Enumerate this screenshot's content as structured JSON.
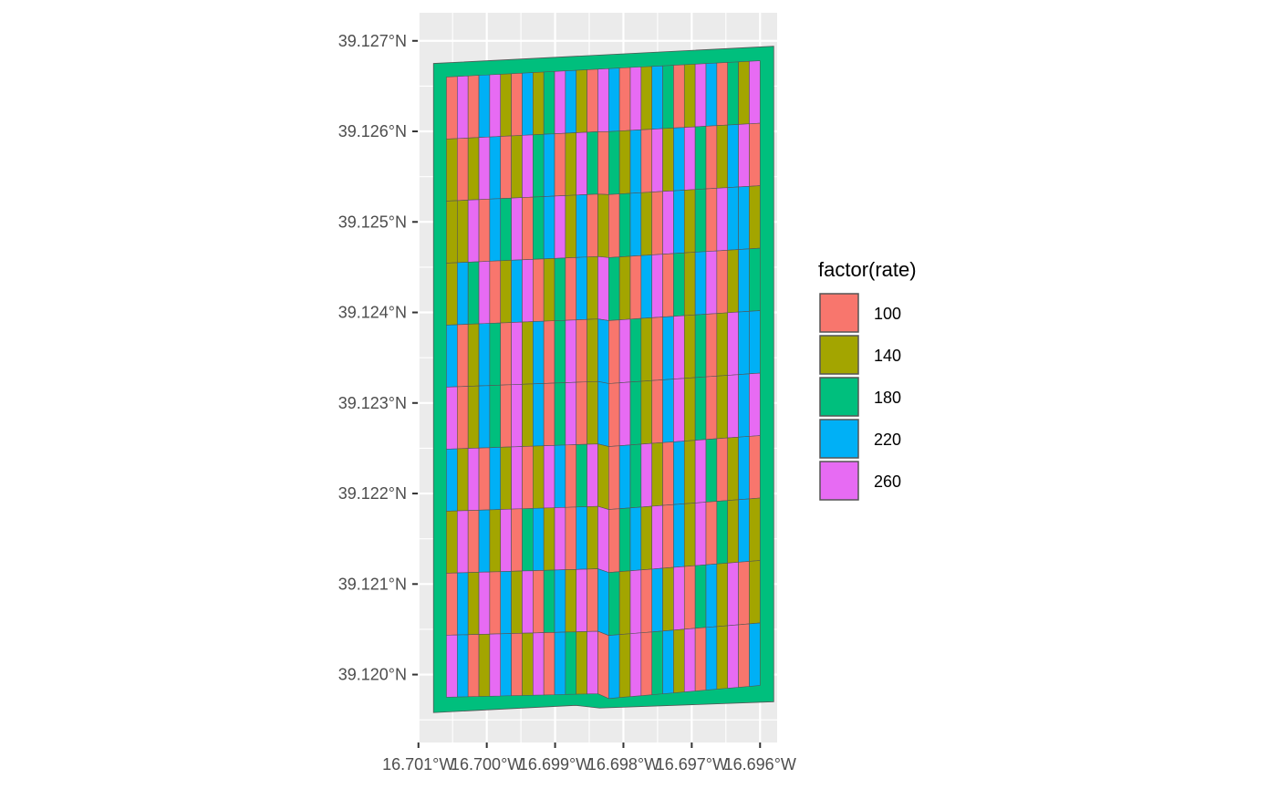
{
  "chart_data": {
    "type": "map",
    "x_axis": {
      "ticks": [
        -16.701,
        -16.7,
        -16.699,
        -16.698,
        -16.697,
        -16.696
      ],
      "tick_labels": [
        "16.701°W",
        "16.700°W",
        "16.699°W",
        "16.698°W",
        "16.697°W",
        "16.696°W"
      ],
      "range": [
        -16.70101,
        -16.69575
      ]
    },
    "y_axis": {
      "ticks": [
        39.12,
        39.121,
        39.122,
        39.123,
        39.124,
        39.125,
        39.126,
        39.127
      ],
      "tick_labels": [
        "39.120°N",
        "39.121°N",
        "39.122°N",
        "39.123°N",
        "39.124°N",
        "39.125°N",
        "39.126°N",
        "39.127°N"
      ],
      "range": [
        39.11925,
        39.12731
      ]
    },
    "panel_background": "#EBEBEB",
    "grid": true,
    "field_boundary": {
      "fill": "#00BF7D",
      "vertices": [
        [
          -16.70078,
          39.12675
        ],
        [
          -16.6958,
          39.12694
        ],
        [
          -16.6958,
          39.1197
        ],
        [
          -16.69835,
          39.11963
        ],
        [
          -16.6987,
          39.11966
        ],
        [
          -16.70078,
          39.11958
        ]
      ]
    },
    "trial_grid": {
      "columns": 29,
      "rows": 10,
      "x_start": -16.70059,
      "x_end": -16.696,
      "top_left_lat": 39.1266,
      "top_right_lat": 39.12678,
      "bottom_left_lat": 39.11975,
      "bottom_mid_lat": 39.11979,
      "bottom_right_lat": 39.11988,
      "notch_lon": -16.69831,
      "notch_depth": 6e-05
    },
    "rates": [
      [
        100,
        260,
        100,
        220,
        260,
        140,
        100,
        220,
        140,
        180,
        260,
        220,
        140,
        100,
        260,
        220,
        100,
        260,
        140,
        220,
        180,
        100,
        140,
        260,
        220,
        100,
        180,
        140,
        260
      ],
      [
        140,
        100,
        140,
        260,
        220,
        100,
        140,
        260,
        180,
        220,
        100,
        140,
        260,
        180,
        100,
        180,
        140,
        220,
        100,
        260,
        140,
        220,
        260,
        180,
        100,
        140,
        220,
        260,
        100
      ],
      [
        140,
        140,
        260,
        100,
        220,
        180,
        260,
        100,
        180,
        220,
        260,
        140,
        220,
        100,
        140,
        100,
        180,
        220,
        140,
        100,
        260,
        220,
        140,
        180,
        100,
        260,
        220,
        220,
        140
      ],
      [
        140,
        220,
        180,
        260,
        100,
        140,
        220,
        260,
        100,
        140,
        180,
        100,
        220,
        140,
        260,
        180,
        140,
        100,
        220,
        260,
        100,
        180,
        140,
        220,
        260,
        100,
        140,
        220,
        180
      ],
      [
        220,
        100,
        140,
        220,
        180,
        100,
        260,
        140,
        220,
        100,
        180,
        260,
        100,
        140,
        220,
        100,
        260,
        180,
        140,
        100,
        220,
        260,
        140,
        180,
        100,
        140,
        260,
        220,
        220
      ],
      [
        260,
        100,
        140,
        220,
        180,
        100,
        260,
        140,
        220,
        100,
        180,
        260,
        100,
        140,
        220,
        100,
        260,
        180,
        140,
        100,
        220,
        260,
        140,
        180,
        100,
        140,
        260,
        220,
        260
      ],
      [
        220,
        140,
        260,
        100,
        220,
        140,
        260,
        100,
        140,
        260,
        220,
        100,
        180,
        260,
        140,
        100,
        220,
        180,
        260,
        140,
        100,
        220,
        140,
        260,
        180,
        100,
        140,
        220,
        100
      ],
      [
        140,
        260,
        100,
        220,
        140,
        260,
        100,
        180,
        220,
        140,
        260,
        100,
        220,
        140,
        260,
        100,
        180,
        220,
        140,
        260,
        100,
        220,
        140,
        260,
        100,
        180,
        140,
        220,
        140
      ],
      [
        100,
        220,
        140,
        260,
        100,
        220,
        140,
        260,
        100,
        180,
        220,
        140,
        260,
        100,
        220,
        180,
        140,
        260,
        100,
        220,
        140,
        260,
        100,
        180,
        220,
        140,
        260,
        100,
        140
      ],
      [
        260,
        220,
        100,
        140,
        260,
        220,
        100,
        140,
        260,
        100,
        220,
        180,
        140,
        260,
        100,
        220,
        140,
        260,
        100,
        180,
        220,
        140,
        260,
        100,
        220,
        140,
        260,
        100,
        220
      ]
    ],
    "legend": {
      "title": "factor(rate)",
      "placement": "right",
      "items": [
        {
          "label": "100",
          "color": "#F8766D"
        },
        {
          "label": "140",
          "color": "#A3A500"
        },
        {
          "label": "180",
          "color": "#00BF7D"
        },
        {
          "label": "220",
          "color": "#00B0F6"
        },
        {
          "label": "260",
          "color": "#E76BF3"
        }
      ]
    }
  }
}
